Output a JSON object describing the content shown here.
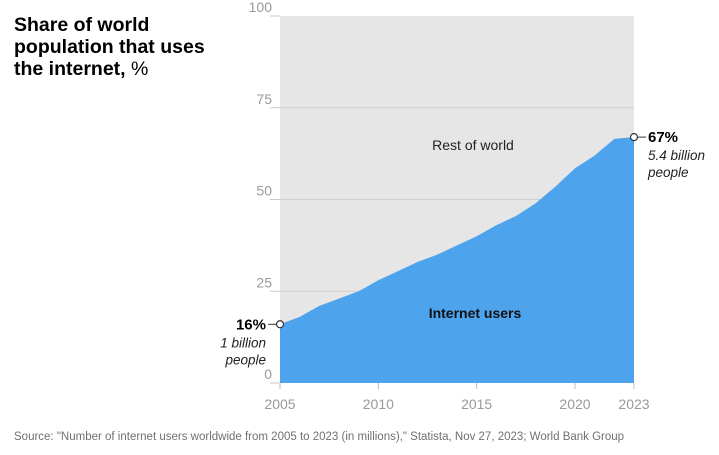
{
  "title_main": "Share of world population that uses the internet,",
  "title_unit": "%",
  "source": "Source: \"Number of internet users worldwide from 2005 to 2023 (in millions),\" Statista, Nov 27, 2023; World Bank Group",
  "chart_data": {
    "type": "area",
    "x": [
      2005,
      2006,
      2007,
      2008,
      2009,
      2010,
      2011,
      2012,
      2013,
      2014,
      2015,
      2016,
      2017,
      2018,
      2019,
      2020,
      2021,
      2022,
      2023
    ],
    "values": [
      16,
      18,
      21,
      23,
      25,
      28,
      30.5,
      33,
      35,
      37.5,
      40,
      43,
      45.5,
      49,
      53.5,
      58.5,
      62,
      66.5,
      67
    ],
    "xlim": [
      2005,
      2023
    ],
    "ylim": [
      0,
      100
    ],
    "yticks": [
      "0",
      "25",
      "50",
      "75",
      "100"
    ],
    "xticks": [
      "2005",
      "2010",
      "2015",
      "2020",
      "2023"
    ],
    "xtick_values": [
      2005,
      2010,
      2015,
      2020,
      2023
    ],
    "ytick_values": [
      0,
      25,
      50,
      75,
      100
    ],
    "colors": {
      "internet_users": "#4da3ec",
      "rest_of_world": "#e6e6e6"
    },
    "grid": true,
    "region_labels": {
      "rest": "Rest of world",
      "users": "Internet users"
    },
    "start_annotation": {
      "value": "16%",
      "note_line1": "1 billion",
      "note_line2": "people"
    },
    "end_annotation": {
      "value": "67%",
      "note_line1": "5.4 billion",
      "note_line2": "people"
    }
  }
}
